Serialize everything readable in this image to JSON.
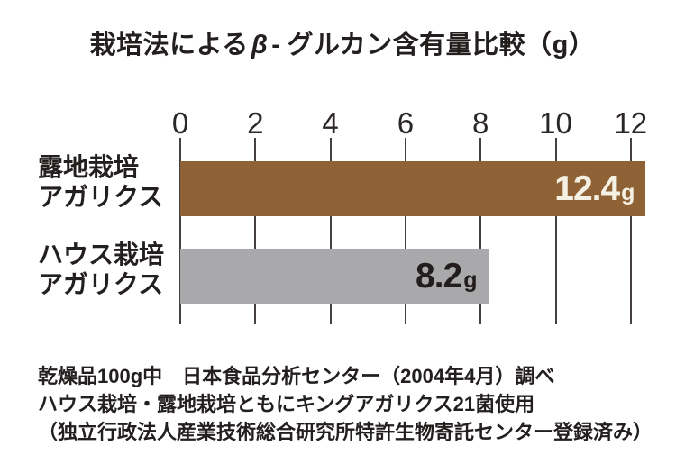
{
  "title_parts": {
    "pre": "栽培法による",
    "beta": "β",
    "hyphen": "-",
    "post": "グルカン含有量比較（g）"
  },
  "chart_data": {
    "type": "bar",
    "orientation": "horizontal",
    "title": "栽培法によるβ-グルカン含有量比較（g）",
    "xlabel": "",
    "ylabel": "",
    "unit": "g",
    "xlim": [
      0,
      12.5
    ],
    "xticks": [
      0,
      2,
      4,
      6,
      8,
      10,
      12
    ],
    "grid": "vertical",
    "legend": "none",
    "bars": [
      {
        "category": "露地栽培アガリクス",
        "label_lines": [
          "露地栽培",
          "アガリクス"
        ],
        "value": 12.4,
        "display": "12.4",
        "unit": "g",
        "bar_color": "#8f6236",
        "value_text_color": "#f5f0e4"
      },
      {
        "category": "ハウス栽培アガリクス",
        "label_lines": [
          "ハウス栽培",
          "アガリクス"
        ],
        "value": 8.2,
        "display": "8.2",
        "unit": "g",
        "bar_color": "#a9a9ab",
        "value_text_color": "#221d1c"
      }
    ]
  },
  "footnotes": [
    "乾燥品100g中　日本食品分析センター（2004年4月）調べ",
    "ハウス栽培・露地栽培ともにキングアガリクス21菌使用",
    "（独立行政法人産業技術総合研究所特許生物寄託センター登録済み）"
  ],
  "colors": {
    "background": "#ffffff",
    "text": "#231f1e",
    "grid": "#46413e",
    "bar_open_field": "#8f6236",
    "bar_greenhouse": "#a9a9ab",
    "value_light": "#f5f0e4"
  }
}
